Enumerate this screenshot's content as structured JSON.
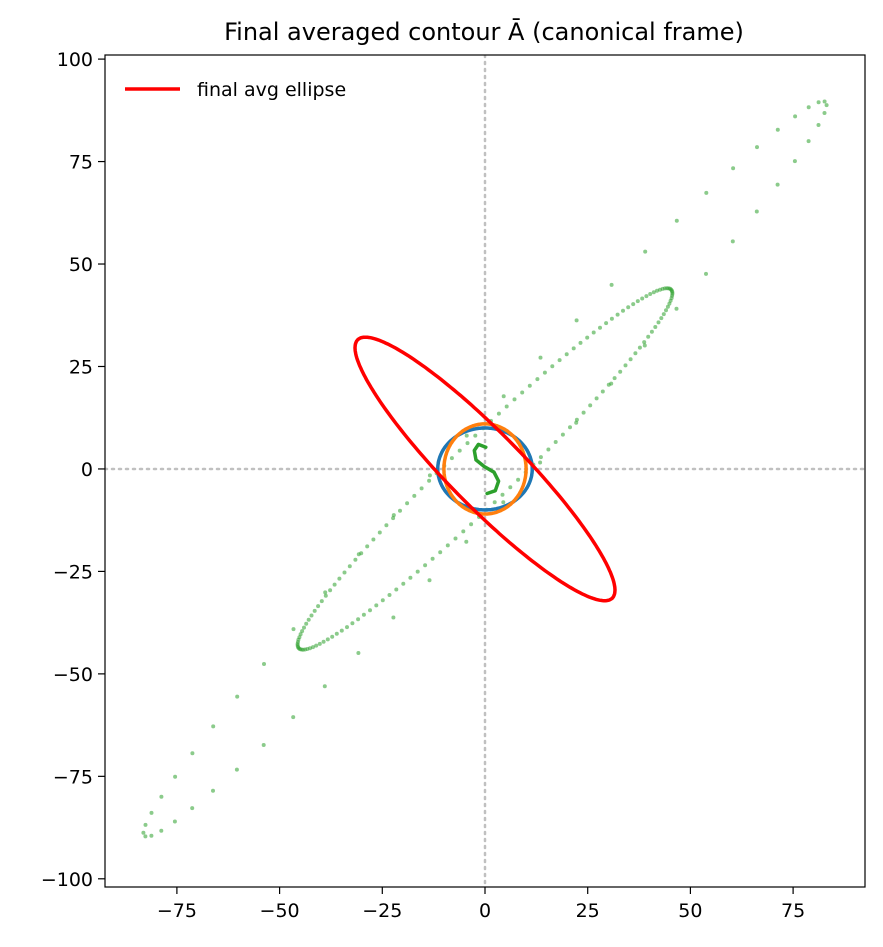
{
  "chart_data": {
    "type": "scatter",
    "title": "Final averaged contour Ā (canonical frame)",
    "xlabel": "",
    "ylabel": "",
    "xlim": [
      -92.5,
      92.5
    ],
    "ylim": [
      -102,
      101
    ],
    "xticks": [
      -75,
      -50,
      -25,
      0,
      25,
      50,
      75
    ],
    "yticks": [
      -100,
      -75,
      -50,
      -25,
      0,
      25,
      50,
      75,
      100
    ],
    "xtick_labels": [
      "−75",
      "−50",
      "−25",
      "0",
      "25",
      "50",
      "75"
    ],
    "ytick_labels": [
      "−100",
      "−75",
      "−50",
      "−25",
      "0",
      "25",
      "50",
      "75",
      "100"
    ],
    "grid": false,
    "reference_lines": {
      "x": 0,
      "y": 0,
      "style": "dotted",
      "color": "#c0c0c0"
    },
    "legend": {
      "placement": "top-left",
      "entries": [
        "final avg ellipse"
      ]
    },
    "series": [
      {
        "name": "final avg ellipse",
        "kind": "ellipse-line",
        "color": "#ff0000",
        "center": [
          0,
          0
        ],
        "semi_major": 44.2,
        "semi_minor": 9.0,
        "angle_deg": -45.5,
        "legend": true
      },
      {
        "kind": "ellipse-line",
        "color": "#1f77b4",
        "center": [
          0,
          0
        ],
        "semi_major": 11.5,
        "semi_minor": 10.0,
        "angle_deg": 0,
        "legend": false
      },
      {
        "kind": "ellipse-line",
        "color": "#ff7f0e",
        "center": [
          0,
          0
        ],
        "semi_major": 11.0,
        "semi_minor": 10.0,
        "angle_deg": 90,
        "legend": false
      },
      {
        "kind": "polyline",
        "color": "#2ca02c",
        "legend": false,
        "points": [
          [
            0.5,
            -6.0
          ],
          [
            2.5,
            -5.3
          ],
          [
            3.3,
            -3.0
          ],
          [
            2.2,
            -0.8
          ],
          [
            -0.2,
            0.6
          ],
          [
            -2.2,
            2.2
          ],
          [
            -2.6,
            4.5
          ],
          [
            -1.6,
            6.0
          ],
          [
            0.2,
            5.3
          ]
        ]
      },
      {
        "kind": "scatter-points",
        "color": "#2ca02c",
        "opacity": 0.55,
        "legend": false,
        "note_outer": "large tilted loop",
        "outer_center": [
          0,
          0
        ],
        "outer_semi_major": 122,
        "outer_semi_minor": 8.8,
        "outer_angle_deg": 47.2,
        "outer_count": 58,
        "inner_center": [
          0,
          0
        ],
        "inner_semi_major": 63,
        "inner_semi_minor": 7.5,
        "inner_angle_deg": 44.0,
        "inner_count": 150
      }
    ]
  }
}
